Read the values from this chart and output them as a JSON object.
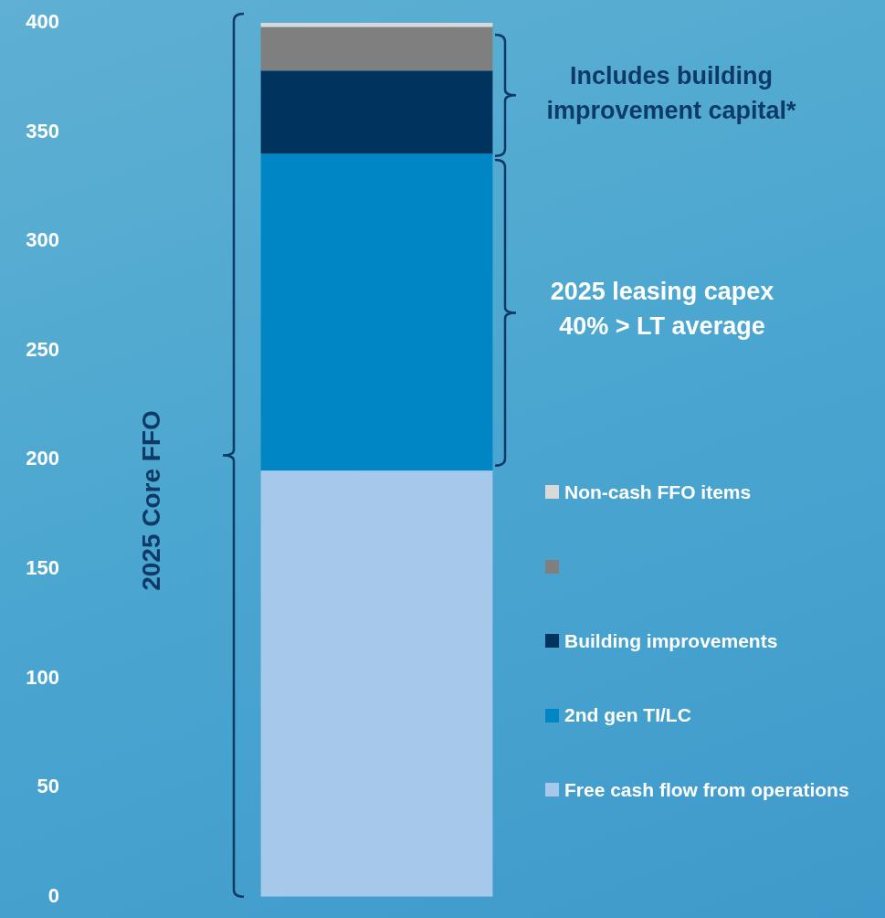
{
  "chart_data": {
    "type": "bar",
    "stacked": true,
    "ylabel": "2025 Core FFO",
    "categories": [
      null
    ],
    "series": [
      {
        "name": "Free cash flow from operations",
        "color": "#a6c8eb",
        "values": [
          195
        ]
      },
      {
        "name": "2nd gen TI/LC",
        "color": "#0086c5",
        "values": [
          145
        ]
      },
      {
        "name": "Building improvements",
        "color": "#00335d",
        "values": [
          38
        ]
      },
      {
        "color": "#7f7f7f",
        "values": [
          20
        ]
      },
      {
        "name": "Non-cash FFO items",
        "color": "#d9d9d9",
        "values": [
          2
        ]
      }
    ],
    "ylim": [
      0,
      400
    ],
    "yticks": [
      0,
      50,
      100,
      150,
      200,
      250,
      300,
      350,
      400
    ],
    "grid": false,
    "legend": "right",
    "annotations": [
      "Includes building\nimprovement capital*",
      "2025 leasing capex\n40% > LT average"
    ]
  }
}
